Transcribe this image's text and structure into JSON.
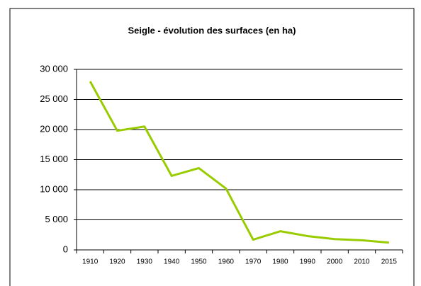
{
  "chart_data": {
    "type": "line",
    "title": "Seigle - évolution des surfaces (en ha)",
    "categories": [
      "1910",
      "1920",
      "1930",
      "1940",
      "1950",
      "1960",
      "1970",
      "1980",
      "1990",
      "2000",
      "2010",
      "2015"
    ],
    "series": [
      {
        "name": "Seigle",
        "color": "#99cc00",
        "values": [
          28000,
          19800,
          20500,
          12300,
          13600,
          10200,
          1700,
          3100,
          2300,
          1800,
          1600,
          1200
        ]
      }
    ],
    "ylim": [
      0,
      30000
    ],
    "yticks": [
      {
        "value": 0,
        "label": "0"
      },
      {
        "value": 5000,
        "label": "5 000"
      },
      {
        "value": 10000,
        "label": "10 000"
      },
      {
        "value": 15000,
        "label": "15 000"
      },
      {
        "value": 20000,
        "label": "20 000"
      },
      {
        "value": 25000,
        "label": "25 000"
      },
      {
        "value": 30000,
        "label": "30 000"
      }
    ],
    "grid": true
  }
}
